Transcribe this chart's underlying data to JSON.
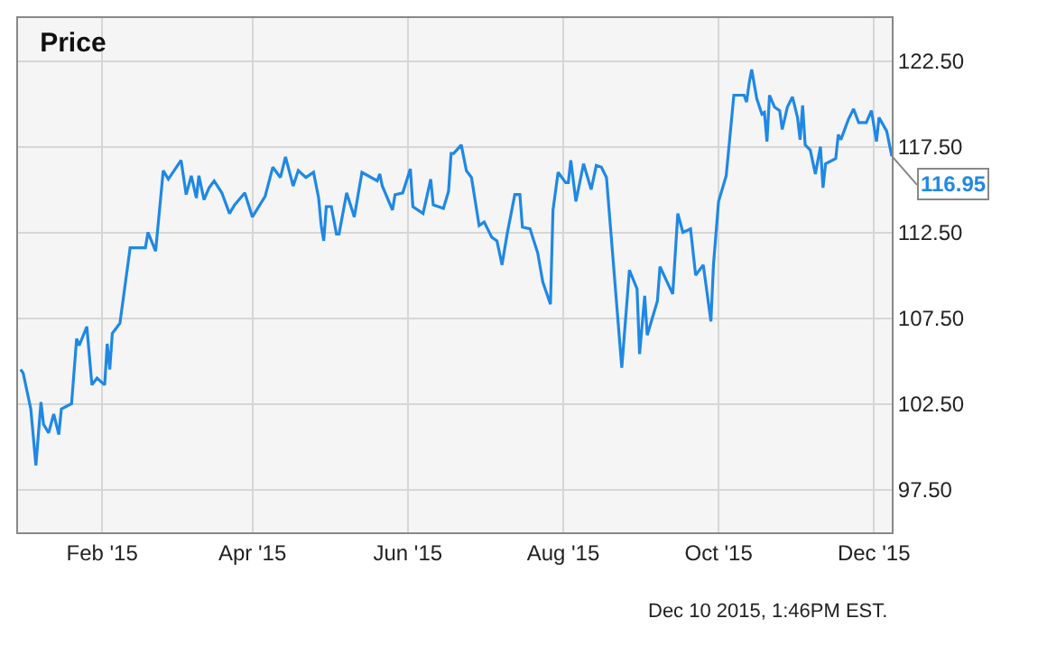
{
  "chart_data": {
    "type": "line",
    "title": "Price",
    "x": [
      "2014-12-31",
      "2015-01-01",
      "2015-01-04",
      "2015-01-06",
      "2015-01-08",
      "2015-01-09",
      "2015-01-11",
      "2015-01-13",
      "2015-01-15",
      "2015-01-16",
      "2015-01-20",
      "2015-01-22",
      "2015-01-23",
      "2015-01-26",
      "2015-01-28",
      "2015-01-30",
      "2015-02-02",
      "2015-02-03",
      "2015-02-04",
      "2015-02-05",
      "2015-02-08",
      "2015-02-12",
      "2015-02-18",
      "2015-02-19",
      "2015-02-22",
      "2015-02-25",
      "2015-02-27",
      "2015-03-04",
      "2015-03-06",
      "2015-03-08",
      "2015-03-10",
      "2015-03-11",
      "2015-03-13",
      "2015-03-15",
      "2015-03-17",
      "2015-03-20",
      "2015-03-23",
      "2015-03-25",
      "2015-03-29",
      "2015-04-01",
      "2015-04-06",
      "2015-04-09",
      "2015-04-12",
      "2015-04-14",
      "2015-04-17",
      "2015-04-19",
      "2015-04-22",
      "2015-04-25",
      "2015-04-27",
      "2015-04-28",
      "2015-04-29",
      "2015-04-30",
      "2015-05-02",
      "2015-05-04",
      "2015-05-05",
      "2015-05-08",
      "2015-05-11",
      "2015-05-14",
      "2015-05-20",
      "2015-05-21",
      "2015-05-22",
      "2015-05-26",
      "2015-05-27",
      "2015-05-30",
      "2015-06-02",
      "2015-06-03",
      "2015-06-07",
      "2015-06-10",
      "2015-06-11",
      "2015-06-15",
      "2015-06-17",
      "2015-06-18",
      "2015-06-19",
      "2015-06-22",
      "2015-06-24",
      "2015-06-26",
      "2015-06-29",
      "2015-07-01",
      "2015-07-04",
      "2015-07-06",
      "2015-07-08",
      "2015-07-10",
      "2015-07-13",
      "2015-07-15",
      "2015-07-16",
      "2015-07-19",
      "2015-07-22",
      "2015-07-24",
      "2015-07-27",
      "2015-07-28",
      "2015-07-30",
      "2015-08-02",
      "2015-08-03",
      "2015-08-04",
      "2015-08-06",
      "2015-08-09",
      "2015-08-12",
      "2015-08-14",
      "2015-08-16",
      "2015-08-18",
      "2015-08-20",
      "2015-08-24",
      "2015-08-27",
      "2015-08-30",
      "2015-08-31",
      "2015-09-02",
      "2015-09-03",
      "2015-09-07",
      "2015-09-08",
      "2015-09-13",
      "2015-09-15",
      "2015-09-17",
      "2015-09-20",
      "2015-09-22",
      "2015-09-25",
      "2015-09-28",
      "2015-09-29",
      "2015-10-01",
      "2015-10-04",
      "2015-10-07",
      "2015-10-11",
      "2015-10-12",
      "2015-10-13",
      "2015-10-14",
      "2015-10-16",
      "2015-10-18",
      "2015-10-19",
      "2015-10-20",
      "2015-10-21",
      "2015-10-23",
      "2015-10-25",
      "2015-10-26",
      "2015-10-28",
      "2015-10-30",
      "2015-11-01",
      "2015-11-02",
      "2015-11-03",
      "2015-11-04",
      "2015-11-06",
      "2015-11-08",
      "2015-11-10",
      "2015-11-11",
      "2015-11-12",
      "2015-11-16",
      "2015-11-17",
      "2015-11-18",
      "2015-11-21",
      "2015-11-23",
      "2015-11-25",
      "2015-11-28",
      "2015-11-30",
      "2015-12-02",
      "2015-12-03",
      "2015-12-06",
      "2015-12-08"
    ],
    "series": [
      {
        "color": "#1f88e5",
        "values": [
          104.5,
          104.3,
          102.2,
          98.9,
          102.6,
          101.3,
          100.8,
          101.9,
          100.7,
          102.2,
          102.5,
          106.3,
          105.9,
          107.0,
          103.6,
          104.0,
          103.6,
          106.0,
          104.5,
          106.6,
          107.2,
          111.6,
          111.6,
          112.5,
          111.4,
          116.1,
          115.6,
          116.7,
          114.7,
          115.8,
          114.5,
          115.8,
          114.4,
          115.1,
          115.5,
          114.8,
          113.6,
          114.1,
          114.8,
          113.4,
          114.6,
          116.3,
          115.7,
          116.9,
          115.2,
          116.1,
          115.7,
          116.0,
          114.5,
          112.9,
          112.0,
          114.0,
          114.0,
          112.4,
          112.4,
          114.8,
          113.4,
          116.0,
          115.5,
          115.9,
          115.2,
          113.8,
          114.7,
          114.8,
          116.2,
          114.0,
          113.6,
          115.6,
          114.1,
          113.9,
          114.9,
          117.1,
          117.1,
          117.6,
          116.1,
          115.7,
          112.9,
          113.1,
          112.2,
          112.0,
          110.6,
          112.4,
          114.7,
          114.7,
          112.8,
          112.7,
          111.3,
          109.6,
          108.3,
          113.8,
          116.0,
          115.4,
          115.4,
          116.7,
          114.3,
          116.5,
          115.0,
          116.4,
          116.3,
          115.7,
          112.0,
          104.6,
          110.3,
          109.2,
          105.4,
          108.8,
          106.5,
          108.5,
          110.5,
          108.9,
          113.6,
          112.5,
          112.7,
          110.0,
          110.6,
          107.3,
          110.6,
          114.3,
          115.8,
          120.5,
          120.5,
          120.1,
          121.2,
          122.0,
          120.3,
          119.4,
          119.5,
          117.8,
          120.5,
          119.8,
          119.6,
          118.5,
          119.8,
          120.4,
          119.2,
          117.9,
          119.9,
          117.6,
          117.3,
          115.9,
          117.5,
          115.1,
          116.5,
          116.8,
          118.2,
          117.9,
          119.1,
          119.7,
          118.9,
          118.9,
          119.6,
          117.8,
          119.2,
          118.4,
          116.95
        ]
      }
    ],
    "xlim": [
      "2014-12-30",
      "2015-12-08"
    ],
    "xticks": [
      {
        "value": "2015-02-01",
        "label": "Feb '15"
      },
      {
        "value": "2015-04-01",
        "label": "Apr '15"
      },
      {
        "value": "2015-06-01",
        "label": "Jun '15"
      },
      {
        "value": "2015-08-01",
        "label": "Aug '15"
      },
      {
        "value": "2015-10-01",
        "label": "Oct '15"
      },
      {
        "value": "2015-12-01",
        "label": "Dec '15"
      }
    ],
    "ylim": [
      95,
      125
    ],
    "yticks": [
      {
        "value": 97.5,
        "label": "97.50"
      },
      {
        "value": 102.5,
        "label": "102.50"
      },
      {
        "value": 107.5,
        "label": "107.50"
      },
      {
        "value": 112.5,
        "label": "112.50"
      },
      {
        "value": 117.5,
        "label": "117.50"
      },
      {
        "value": 122.5,
        "label": "122.50"
      }
    ],
    "grid": true,
    "annotations": [
      {
        "text": "116.95",
        "x": "2015-12-08",
        "y": 116.95
      },
      "Dec 10 2015, 1:46PM EST."
    ]
  }
}
